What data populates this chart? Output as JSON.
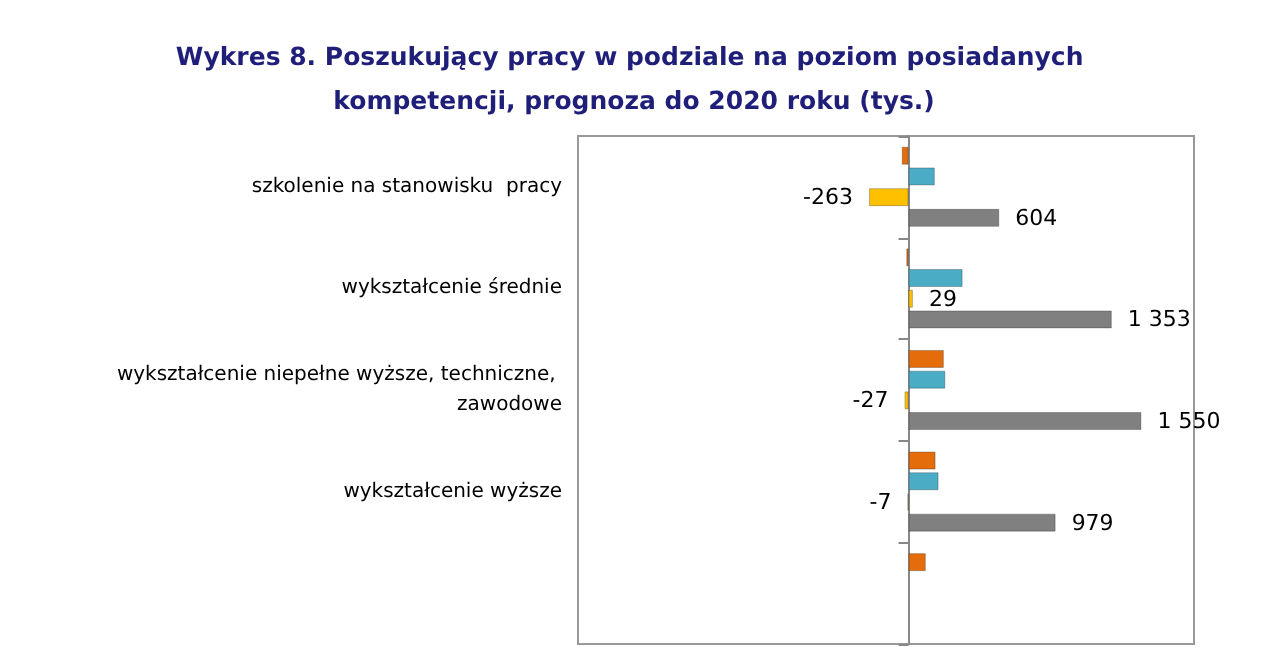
{
  "chart_data": {
    "type": "bar",
    "orientation": "horizontal",
    "title": "Wykres 8. Poszukujący pracy w podziale na poziom posiadanych kompetencji, prognoza do 2020 roku (tys.)",
    "categories": [
      "szkolenie na stanowisku  pracy",
      "wykształcenie średnie",
      "wykształcenie niepełne wyższe, techniczne, zawodowe",
      "wykształcenie wyższe",
      null
    ],
    "series": [
      {
        "color": "#e46c0a",
        "values": [
          -45,
          -15,
          235,
          180,
          115
        ]
      },
      {
        "color": "#4bacc6",
        "values": [
          175,
          360,
          245,
          200,
          null
        ]
      },
      {
        "color": "#ffc000",
        "values": [
          -263,
          29,
          -27,
          -7,
          null
        ],
        "value_labels": [
          "-263",
          "29",
          "-27",
          "-7",
          null
        ]
      },
      {
        "color": "#808080",
        "values": [
          604,
          1353,
          1550,
          979,
          null
        ],
        "value_labels": [
          "604",
          "1 353",
          "1 550",
          "979",
          null
        ]
      }
    ],
    "xlim": [
      -2200,
      1900
    ],
    "tick_labels": "y",
    "grid": false
  }
}
